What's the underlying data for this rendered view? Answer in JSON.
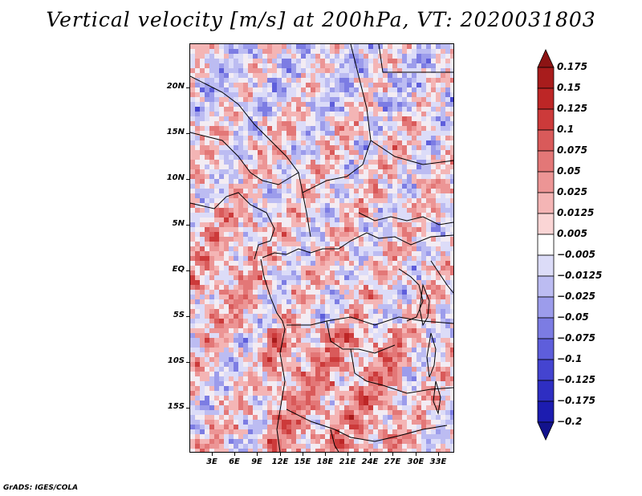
{
  "title": "Vertical velocity [m/s] at 200hPa, VT: 2020031803",
  "credit": "GrADS: IGES/COLA",
  "map": {
    "lat_labels": [
      "20N",
      "15N",
      "10N",
      "5N",
      "EQ",
      "5S",
      "10S",
      "15S"
    ],
    "lon_labels": [
      "3E",
      "6E",
      "9E",
      "12E",
      "15E",
      "18E",
      "21E",
      "24E",
      "27E",
      "30E",
      "33E"
    ],
    "region": "Central Africa",
    "field": "vertical velocity"
  },
  "colorbar": {
    "labels": [
      "0.175",
      "0.15",
      "0.125",
      "0.1",
      "0.075",
      "0.05",
      "0.025",
      "0.0125",
      "0.005",
      "−0.005",
      "−0.0125",
      "−0.025",
      "−0.05",
      "−0.075",
      "−0.1",
      "−0.125",
      "−0.175",
      "−0.2"
    ],
    "colors": [
      "#8c1414",
      "#a81c1c",
      "#bd2626",
      "#cc3a3a",
      "#d95a5a",
      "#e37777",
      "#ec9595",
      "#f4b5b5",
      "#fad5d5",
      "#ffffff",
      "#dcdcf8",
      "#bcbcf2",
      "#9c9ceb",
      "#7c7ce3",
      "#5e5edb",
      "#4444d0",
      "#2e2ec2",
      "#1c1cb0",
      "#12128c"
    ]
  }
}
